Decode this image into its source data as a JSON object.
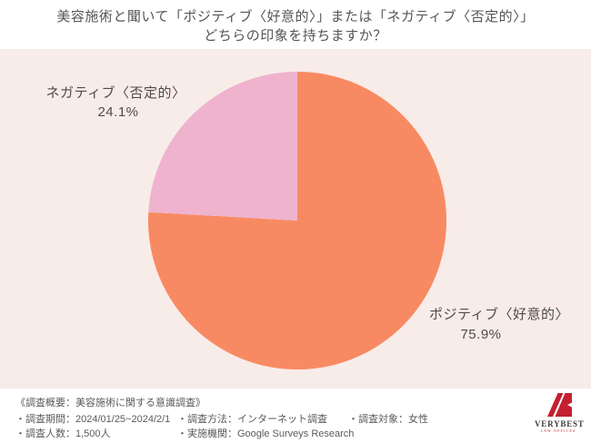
{
  "header": {
    "title_line1": "美容施術と聞いて「ポジティブ〈好意的〉」または「ネガティブ〈否定的〉」",
    "title_line2": "どちらの印象を持ちますか？"
  },
  "chart_data": {
    "type": "pie",
    "title": "美容施術と聞いて「ポジティブ〈好意的〉」または「ネガティブ〈否定的〉」どちらの印象を持ちますか？",
    "start_angle_deg": 0,
    "direction": "clockwise",
    "background_color": "#f8ece8",
    "slices": [
      {
        "label": "ポジティブ〈好意的〉",
        "value": 75.9,
        "pct_label": "75.9%",
        "color": "#f88a63"
      },
      {
        "label": "ネガティブ〈否定的〉",
        "value": 24.1,
        "pct_label": "24.1%",
        "color": "#efb3ce"
      }
    ],
    "legend_position": "labels-beside-slices"
  },
  "footer": {
    "survey_title": "《調査概要：美容施術に関する意識調査》",
    "col1": [
      "・調査期間：2024/01/25~2024/2/1",
      "・調査人数：1,500人"
    ],
    "col2": [
      "・調査方法：インターネット調査",
      "・実施機関：Google Surveys Research"
    ],
    "col3": [
      "・調査対象：女性"
    ]
  },
  "logo": {
    "name": "VERYBEST",
    "sub": "LAW OFFICES",
    "color": "#c32031"
  }
}
